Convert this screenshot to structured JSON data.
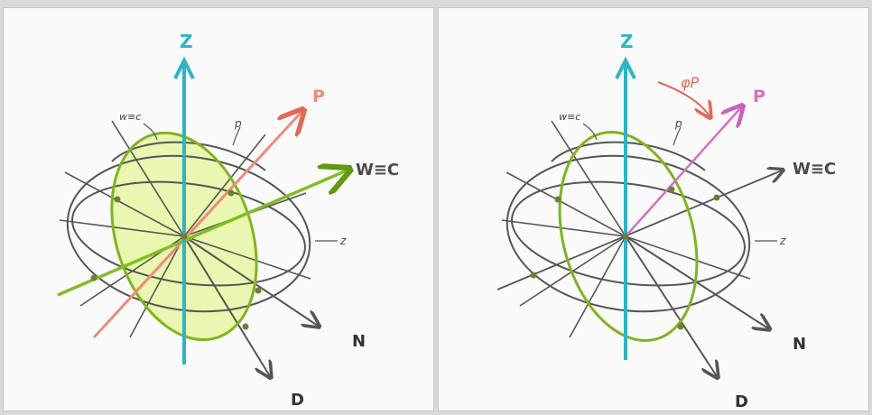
{
  "panels": [
    {
      "axis_z_label": "Z",
      "axis_p_label": "P",
      "axis_wec_label": "W≡C",
      "axis_n_label": "N",
      "axis_d_label": "D",
      "circle_wec_label": "w≡c",
      "circle_p_label": "p",
      "circle_z_label": "z"
    },
    {
      "axis_z_label": "Z",
      "axis_p_label": "P",
      "axis_wec_label": "W≡C",
      "axis_n_label": "N",
      "axis_d_label": "D",
      "circle_wec_label": "w≡c",
      "circle_p_label": "p",
      "circle_z_label": "z",
      "angle_label": "φP"
    }
  ],
  "colors": {
    "z_axis": "#2bb5c8",
    "p_axis_left": "#f08a78",
    "p_axis_right": "#d070c8",
    "wec": "#7fc020",
    "wec_fill": "#e6f5a8",
    "gray": "#555555"
  }
}
